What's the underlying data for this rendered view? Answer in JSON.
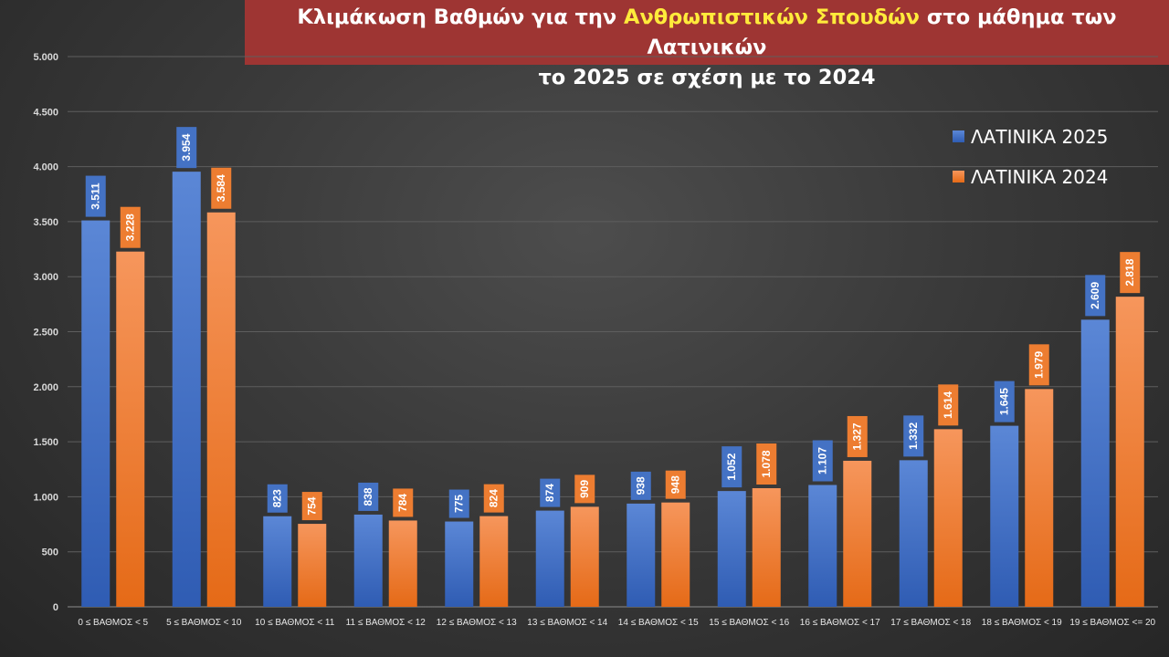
{
  "title": {
    "line1_prefix": "Κλιμάκωση Βαθμών για την ",
    "line1_highlight": "Ανθρωπιστικών Σπουδών",
    "line1_suffix": " στο μάθημα των Λατινικών",
    "line2": "το 2025 σε σχέση με το 2024",
    "highlight_color": "#ffeb3b",
    "background": "#9e3533"
  },
  "chart_data": {
    "type": "bar",
    "categories": [
      "0 ≤ ΒΑΘΜΟΣ < 5",
      "5 ≤ ΒΑΘΜΟΣ < 10",
      "10 ≤ ΒΑΘΜΟΣ < 11",
      "11 ≤ ΒΑΘΜΟΣ < 12",
      "12 ≤ ΒΑΘΜΟΣ < 13",
      "13 ≤ ΒΑΘΜΟΣ < 14",
      "14 ≤ ΒΑΘΜΟΣ < 15",
      "15 ≤ ΒΑΘΜΟΣ < 16",
      "16 ≤ ΒΑΘΜΟΣ < 17",
      "17 ≤ ΒΑΘΜΟΣ < 18",
      "18 ≤ ΒΑΘΜΟΣ < 19",
      "19 ≤ ΒΑΘΜΟΣ <= 20"
    ],
    "series": [
      {
        "name": "ΛΑΤΙΝΙΚΑ 2025",
        "color": "#4472c4",
        "values": [
          3511,
          3954,
          823,
          838,
          775,
          874,
          938,
          1052,
          1107,
          1332,
          1645,
          2609
        ],
        "labels": [
          "3.511",
          "3.954",
          "823",
          "838",
          "775",
          "874",
          "938",
          "1.052",
          "1.107",
          "1.332",
          "1.645",
          "2.609"
        ]
      },
      {
        "name": "ΛΑΤΙΝΙΚΑ 2024",
        "color": "#ed7d31",
        "values": [
          3228,
          3584,
          754,
          784,
          824,
          909,
          948,
          1078,
          1327,
          1614,
          1979,
          2818
        ],
        "labels": [
          "3.228",
          "3.584",
          "754",
          "784",
          "824",
          "909",
          "948",
          "1.078",
          "1.327",
          "1.614",
          "1.979",
          "2.818"
        ]
      }
    ],
    "ylim": [
      0,
      5000
    ],
    "yticks": [
      0,
      500,
      1000,
      1500,
      2000,
      2500,
      3000,
      3500,
      4000,
      4500,
      5000
    ],
    "ytick_labels": [
      "0",
      "500",
      "1.000",
      "1.500",
      "2.000",
      "2.500",
      "3.000",
      "3.500",
      "4.000",
      "4.500",
      "5.000"
    ],
    "grid": true,
    "legend_position": "top-right",
    "xlabel": "",
    "ylabel": ""
  }
}
